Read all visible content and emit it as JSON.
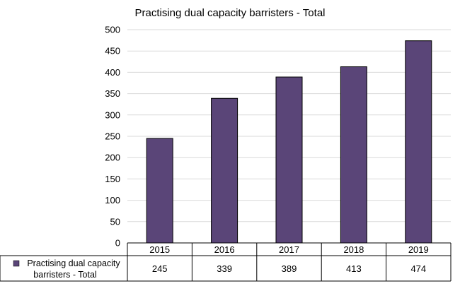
{
  "chart_data": {
    "type": "bar",
    "title": "Practising dual capacity barristers - Total",
    "categories": [
      "2015",
      "2016",
      "2017",
      "2018",
      "2019"
    ],
    "series": [
      {
        "name": "Practising dual capacity barristers - Total",
        "legend_lines": [
          "Practising dual capacity",
          "barristers - Total"
        ],
        "values": [
          245,
          339,
          389,
          413,
          474
        ]
      }
    ],
    "y_ticks": [
      "0",
      "50",
      "100",
      "150",
      "200",
      "250",
      "300",
      "350",
      "400",
      "450",
      "500"
    ],
    "ylim": [
      0,
      500
    ],
    "grid": true,
    "legend_placement": "data-table-left",
    "bar_color": "#5a4578",
    "grid_color": "#d9d9d9",
    "axis_color": "#000000"
  }
}
